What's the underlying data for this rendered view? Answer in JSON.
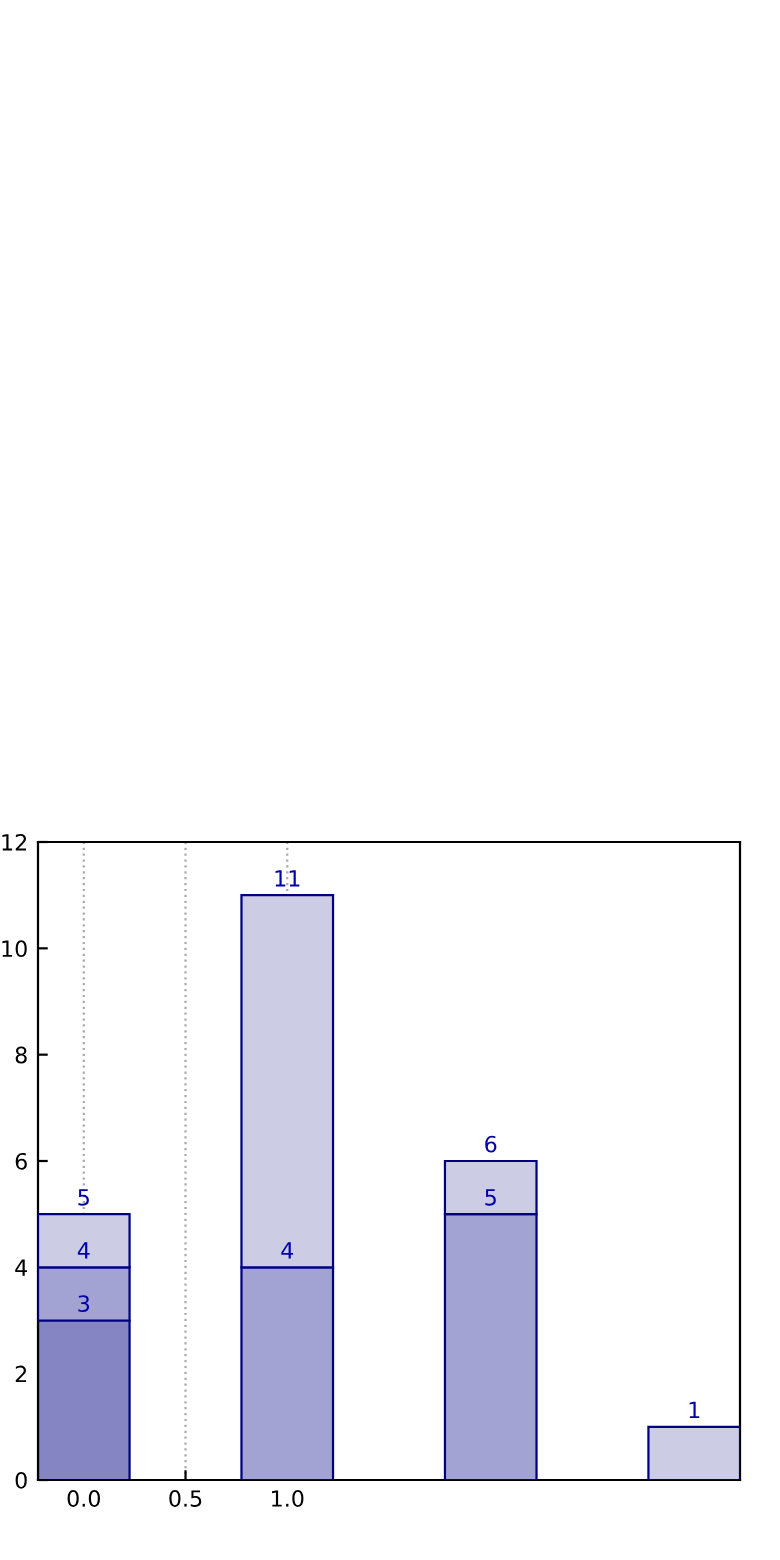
{
  "chart_data": {
    "type": "bar",
    "stacked": true,
    "x": [
      0,
      1,
      2,
      3
    ],
    "series": [
      {
        "color": "#8585c4",
        "values": [
          3,
          null,
          null,
          null
        ]
      },
      {
        "color": "#a3a3d3",
        "values": [
          1,
          4,
          5,
          null
        ]
      },
      {
        "color": "#ccccE5",
        "values": [
          1,
          7,
          1,
          1
        ]
      }
    ],
    "annotations": [
      {
        "text": "3",
        "x": 0,
        "y": 3
      },
      {
        "text": "4",
        "x": 0,
        "y": 4
      },
      {
        "text": "5",
        "x": 0,
        "y": 5
      },
      {
        "text": "4",
        "x": 1,
        "y": 4
      },
      {
        "text": "11",
        "x": 1,
        "y": 11
      },
      {
        "text": "5",
        "x": 2,
        "y": 5
      },
      {
        "text": "6",
        "x": 2,
        "y": 6
      },
      {
        "text": "1",
        "x": 3,
        "y": 1
      }
    ],
    "xlim": [
      -0.225,
      3.225
    ],
    "xticks": [
      {
        "value": 0,
        "label": "0.0"
      },
      {
        "value": 0.5,
        "label": "0.5"
      },
      {
        "value": 1,
        "label": "1.0"
      }
    ],
    "ylim": [
      0,
      12
    ],
    "yticks": [
      0,
      2,
      4,
      6,
      8,
      10,
      12
    ],
    "grid": "x"
  }
}
